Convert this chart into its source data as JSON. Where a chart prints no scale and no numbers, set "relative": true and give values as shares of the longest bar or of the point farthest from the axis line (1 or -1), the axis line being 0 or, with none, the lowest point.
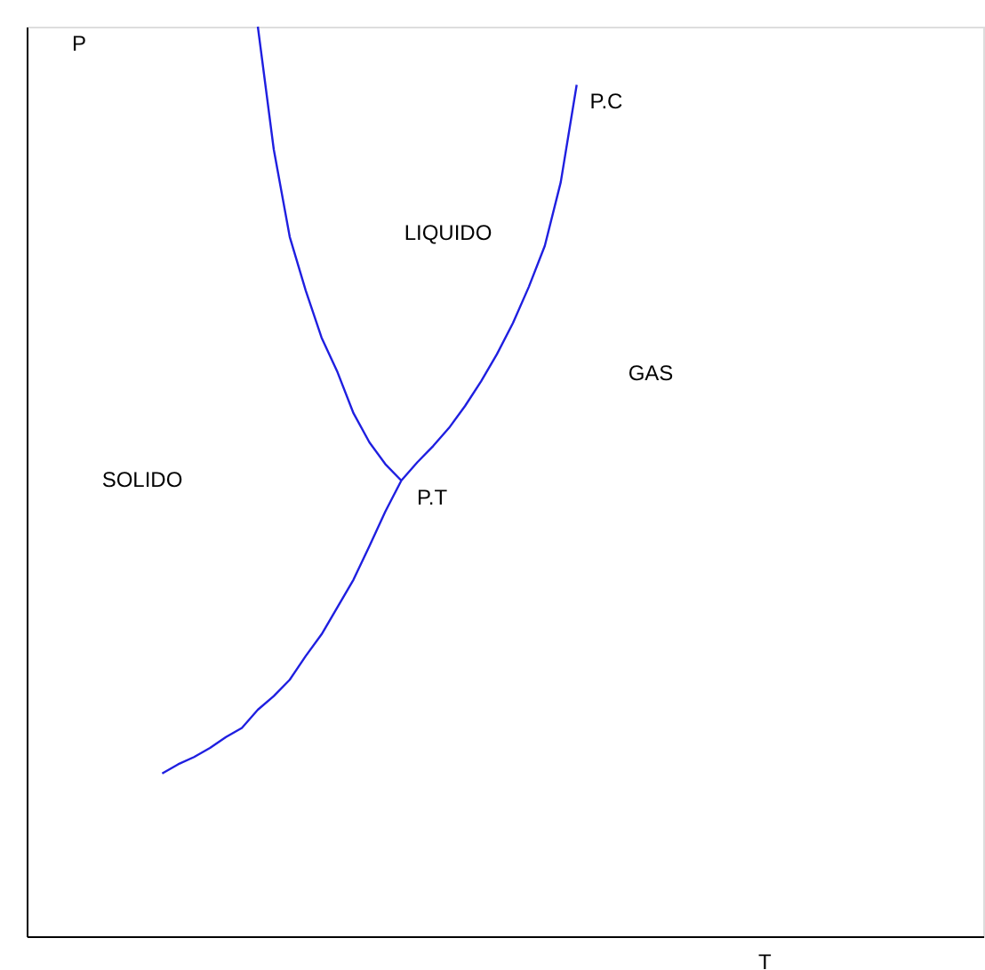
{
  "chart_data": {
    "type": "line",
    "relative": true,
    "xlabel": "T",
    "ylabel": "P",
    "tick_labels": false,
    "grid": false,
    "marker": "none",
    "line_style": "solid",
    "categories": [
      null,
      null,
      null,
      null,
      null,
      null,
      null,
      null,
      null,
      null,
      null,
      null,
      null,
      null,
      null,
      null,
      null,
      null,
      null,
      null,
      null,
      null,
      null,
      null,
      null,
      null,
      null,
      null,
      null,
      null,
      null,
      null,
      null,
      null,
      null,
      null,
      null,
      null,
      null,
      null,
      null,
      null,
      null,
      null,
      null,
      null,
      null,
      null,
      null,
      null,
      null,
      null,
      null,
      null,
      null,
      null,
      null,
      null,
      null,
      null
    ],
    "series": [
      {
        "color": "#1f1fe0",
        "values": [
          null,
          null,
          null,
          null,
          null,
          null,
          null,
          null,
          null,
          null,
          null,
          null,
          null,
          null,
          1.0,
          0.865,
          0.769,
          0.71,
          0.658,
          0.62,
          0.575,
          0.543,
          0.519,
          0.501,
          null,
          null,
          null,
          null,
          null,
          null,
          null,
          null,
          null,
          null,
          null,
          null,
          null,
          null,
          null,
          null,
          null,
          null,
          null,
          null,
          null,
          null,
          null,
          null,
          null,
          null,
          null,
          null,
          null,
          null,
          null,
          null,
          null,
          null,
          null,
          null
        ]
      },
      {
        "color": "#1f1fe0",
        "values": [
          null,
          null,
          null,
          null,
          null,
          null,
          null,
          null,
          0.179,
          0.189,
          0.197,
          0.207,
          0.219,
          0.229,
          0.249,
          0.264,
          0.282,
          0.308,
          0.332,
          0.362,
          0.392,
          0.429,
          0.467,
          0.501,
          0.521,
          0.539,
          0.559,
          0.583,
          0.61,
          0.64,
          0.674,
          0.714,
          0.759,
          0.829,
          0.936,
          null,
          null,
          null,
          null,
          null,
          null,
          null,
          null,
          null,
          null,
          null,
          null,
          null,
          null,
          null,
          null,
          null,
          null,
          null,
          null,
          null,
          null,
          null,
          null,
          null
        ]
      }
    ],
    "annotations": [
      "SOLIDO",
      "LIQUIDO",
      "GAS",
      "P.T",
      "P.C"
    ]
  }
}
